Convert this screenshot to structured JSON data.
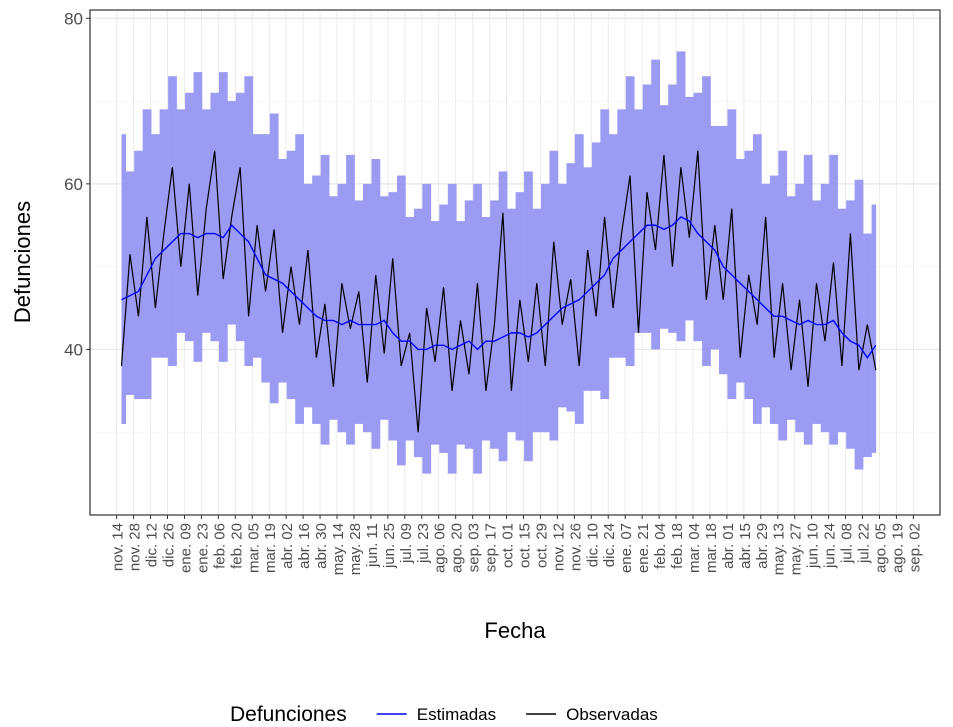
{
  "chart_data": {
    "type": "line",
    "xlabel": "Fecha",
    "ylabel": "Defunciones",
    "legend_title": "Defunciones",
    "legend_position": "bottom",
    "grid": true,
    "xlim": [
      -22,
      680
    ],
    "ylim": [
      20,
      81
    ],
    "yticks": [
      40,
      60,
      80
    ],
    "y_minor_ticks": [
      30,
      50,
      70
    ],
    "xticks": [
      {
        "value": 0,
        "label": "nov. 14"
      },
      {
        "value": 14,
        "label": "nov. 28"
      },
      {
        "value": 28,
        "label": "dic. 12"
      },
      {
        "value": 42,
        "label": "dic. 26"
      },
      {
        "value": 56,
        "label": "ene. 09"
      },
      {
        "value": 70,
        "label": "ene. 23"
      },
      {
        "value": 84,
        "label": "feb. 06"
      },
      {
        "value": 98,
        "label": "feb. 20"
      },
      {
        "value": 112,
        "label": "mar. 05"
      },
      {
        "value": 126,
        "label": "mar. 19"
      },
      {
        "value": 140,
        "label": "abr. 02"
      },
      {
        "value": 154,
        "label": "abr. 16"
      },
      {
        "value": 168,
        "label": "abr. 30"
      },
      {
        "value": 182,
        "label": "may. 14"
      },
      {
        "value": 196,
        "label": "may. 28"
      },
      {
        "value": 210,
        "label": "jun. 11"
      },
      {
        "value": 224,
        "label": "jun. 25"
      },
      {
        "value": 238,
        "label": "jul. 09"
      },
      {
        "value": 252,
        "label": "jul. 23"
      },
      {
        "value": 266,
        "label": "ago. 06"
      },
      {
        "value": 280,
        "label": "ago. 20"
      },
      {
        "value": 294,
        "label": "sep. 03"
      },
      {
        "value": 308,
        "label": "sep. 17"
      },
      {
        "value": 322,
        "label": "oct. 01"
      },
      {
        "value": 336,
        "label": "oct. 15"
      },
      {
        "value": 350,
        "label": "oct. 29"
      },
      {
        "value": 364,
        "label": "nov. 12"
      },
      {
        "value": 378,
        "label": "nov. 26"
      },
      {
        "value": 392,
        "label": "dic. 10"
      },
      {
        "value": 406,
        "label": "dic. 24"
      },
      {
        "value": 420,
        "label": "ene. 07"
      },
      {
        "value": 434,
        "label": "ene. 21"
      },
      {
        "value": 448,
        "label": "feb. 04"
      },
      {
        "value": 462,
        "label": "feb. 18"
      },
      {
        "value": 476,
        "label": "mar. 04"
      },
      {
        "value": 490,
        "label": "mar. 18"
      },
      {
        "value": 504,
        "label": "abr. 01"
      },
      {
        "value": 518,
        "label": "abr. 15"
      },
      {
        "value": 532,
        "label": "abr. 29"
      },
      {
        "value": 546,
        "label": "may. 13"
      },
      {
        "value": 560,
        "label": "may. 27"
      },
      {
        "value": 574,
        "label": "jun. 10"
      },
      {
        "value": 588,
        "label": "jun. 24"
      },
      {
        "value": 602,
        "label": "jul. 08"
      },
      {
        "value": 616,
        "label": "jul. 22"
      },
      {
        "value": 630,
        "label": "ago. 05"
      },
      {
        "value": 644,
        "label": "ago. 19"
      },
      {
        "value": 658,
        "label": "sep. 02"
      }
    ],
    "x": [
      4,
      11,
      18,
      25,
      32,
      39,
      46,
      53,
      60,
      67,
      74,
      81,
      88,
      95,
      102,
      109,
      116,
      123,
      130,
      137,
      144,
      151,
      158,
      165,
      172,
      179,
      186,
      193,
      200,
      207,
      214,
      221,
      228,
      235,
      242,
      249,
      256,
      263,
      270,
      277,
      284,
      291,
      298,
      305,
      312,
      319,
      326,
      333,
      340,
      347,
      354,
      361,
      368,
      375,
      382,
      389,
      396,
      403,
      410,
      417,
      424,
      431,
      438,
      445,
      452,
      459,
      466,
      473,
      480,
      487,
      494,
      501,
      508,
      515,
      522,
      529,
      536,
      543,
      550,
      557,
      564,
      571,
      578,
      585,
      592,
      599,
      606,
      613,
      620,
      627
    ],
    "band": {
      "color": "#9b9bf4",
      "lower": [
        31,
        34.5,
        34,
        34,
        39,
        39,
        38,
        42,
        41,
        38.5,
        42,
        41,
        38.5,
        43,
        41,
        38,
        39,
        36,
        33.5,
        36,
        34,
        31,
        33,
        31,
        28.5,
        31.5,
        30,
        28.5,
        31,
        30,
        28,
        31.5,
        29,
        26,
        29,
        27,
        25,
        28.5,
        27.5,
        25,
        28.5,
        28,
        25,
        29,
        28,
        26.5,
        30,
        29,
        26.5,
        30,
        30,
        29,
        33,
        32.5,
        31,
        35,
        35,
        34,
        39,
        39,
        38,
        42,
        42,
        40,
        42.5,
        42,
        41,
        43.5,
        41,
        38,
        40,
        37,
        34,
        36,
        34,
        31,
        33,
        31,
        29,
        31.5,
        30,
        28.5,
        31,
        30,
        28.5,
        30,
        28,
        25.5,
        27,
        27.5
      ],
      "upper": [
        66,
        61.5,
        64,
        69,
        66,
        69,
        73,
        69,
        71,
        73.5,
        69,
        71,
        73.5,
        70,
        71,
        73,
        66,
        66,
        68.5,
        63,
        64,
        66,
        60,
        61,
        63.5,
        58.5,
        60,
        63.5,
        58,
        60,
        63,
        58.5,
        59,
        61,
        56,
        57,
        60,
        55.5,
        57.5,
        60,
        55.5,
        58,
        60,
        56,
        58,
        61.5,
        57,
        59,
        61.5,
        57,
        60,
        64,
        60,
        62.5,
        66,
        62,
        65,
        69,
        66,
        69,
        73,
        69,
        72,
        75,
        69.5,
        72,
        76,
        70.5,
        71,
        73,
        67,
        67,
        69,
        63,
        64,
        66,
        60,
        61,
        64,
        58.5,
        60,
        63.5,
        58,
        60,
        63.5,
        57,
        58,
        60.5,
        54,
        57.5
      ]
    },
    "series": [
      {
        "name": "Estimadas",
        "color": "#0000ff",
        "values": [
          46,
          46.5,
          47,
          49,
          51,
          52,
          53,
          54,
          54,
          53.5,
          54,
          54,
          53.5,
          55,
          54,
          53,
          51,
          49,
          48.5,
          48,
          47,
          46,
          45,
          44,
          43.5,
          43.5,
          43,
          43.5,
          43,
          43,
          43,
          43.5,
          42,
          41,
          41,
          40,
          40,
          40.5,
          40.5,
          40,
          40.5,
          41,
          40,
          41,
          41,
          41.5,
          42,
          42,
          41.5,
          42,
          43,
          44,
          45,
          45.5,
          46,
          47,
          48,
          49,
          51,
          52,
          53,
          54,
          55,
          55,
          54.5,
          55,
          56,
          55.5,
          54,
          53,
          52,
          50,
          49,
          48,
          47,
          46,
          45,
          44,
          44,
          43.5,
          43,
          43.5,
          43,
          43,
          43.5,
          42,
          41,
          40.5,
          39,
          40.5
        ]
      },
      {
        "name": "Observadas",
        "color": "#000000",
        "values": [
          38,
          51.5,
          44,
          56,
          45,
          54,
          62,
          50,
          60,
          46.5,
          57,
          64,
          48.5,
          56,
          62,
          44,
          55,
          47,
          54.5,
          42,
          50,
          43,
          52,
          39,
          45.5,
          35.5,
          48,
          42.5,
          47,
          36,
          49,
          39.5,
          51,
          38,
          42,
          30,
          45,
          38.5,
          47.5,
          35,
          43.5,
          37,
          48,
          35,
          43,
          56.5,
          35,
          46,
          38.5,
          48,
          38,
          53,
          43,
          48.5,
          38,
          52,
          44,
          56,
          45,
          54,
          61,
          42,
          59,
          52,
          63.5,
          50,
          62,
          53.5,
          64,
          46,
          55,
          46,
          57,
          39,
          49,
          43,
          56,
          39,
          48,
          37.5,
          46,
          35.5,
          48,
          41,
          50.5,
          38,
          54,
          37.5,
          43,
          37.5
        ]
      }
    ]
  }
}
